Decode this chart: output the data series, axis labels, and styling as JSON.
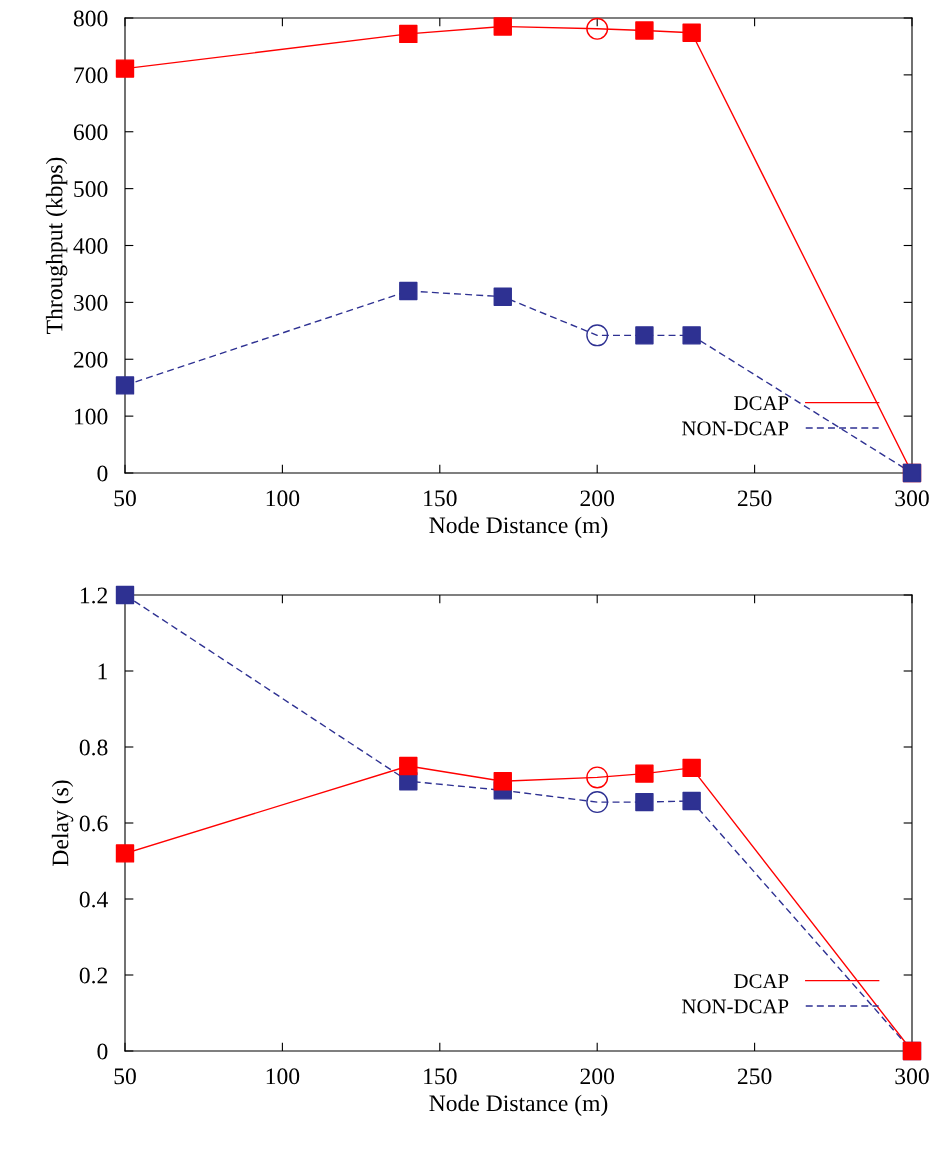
{
  "chart_data": [
    {
      "type": "line",
      "xlabel": "Node Distance (m)",
      "ylabel": "Throughput (kbps)",
      "xlim": [
        50,
        300
      ],
      "xticks": [
        50,
        100,
        150,
        200,
        250,
        300
      ],
      "ylim": [
        0,
        800
      ],
      "yticks": [
        0,
        100,
        200,
        300,
        400,
        500,
        600,
        700,
        800
      ],
      "grid": false,
      "legend": "bottom right",
      "x": [
        50,
        140,
        170,
        200,
        215,
        230,
        300
      ],
      "series": [
        {
          "name": "DCAP",
          "color": "#ff0000",
          "line_style": "solid",
          "marker": "none",
          "values": [
            711,
            772,
            785,
            781,
            778,
            774,
            0
          ]
        },
        {
          "name": "NON-DCAP",
          "color": "#2e3192",
          "line_style": "dashed",
          "marker": "none",
          "values": [
            154,
            320,
            310,
            242,
            242,
            242,
            0
          ]
        },
        {
          "type": "scatter",
          "color": "#ff0000",
          "marker": "square",
          "x": [
            50,
            140,
            170,
            215,
            230,
            300
          ],
          "values": [
            711,
            772,
            785,
            778,
            774,
            0
          ]
        },
        {
          "type": "scatter",
          "color": "#ff0000",
          "marker": "circle",
          "x": [
            200
          ],
          "values": [
            781
          ]
        },
        {
          "type": "scatter",
          "color": "#2e3192",
          "marker": "square",
          "x": [
            50,
            140,
            170,
            215,
            230,
            300
          ],
          "values": [
            154,
            320,
            310,
            242,
            242,
            0
          ]
        },
        {
          "type": "scatter",
          "color": "#2e3192",
          "marker": "circle",
          "x": [
            200
          ],
          "values": [
            242
          ]
        }
      ]
    },
    {
      "type": "line",
      "xlabel": "Node Distance (m)",
      "ylabel": "Delay (s)",
      "xlim": [
        50,
        300
      ],
      "xticks": [
        50,
        100,
        150,
        200,
        250,
        300
      ],
      "ylim": [
        0,
        1.2
      ],
      "yticks": [
        0,
        0.2,
        0.4,
        0.6,
        0.8,
        1,
        1.2
      ],
      "grid": false,
      "legend": "bottom right",
      "x": [
        50,
        140,
        170,
        200,
        215,
        230,
        300
      ],
      "series": [
        {
          "name": "DCAP",
          "color": "#ff0000",
          "line_style": "solid",
          "marker": "none",
          "values": [
            0.52,
            0.75,
            0.71,
            0.72,
            0.73,
            0.745,
            0
          ]
        },
        {
          "name": "NON-DCAP",
          "color": "#2e3192",
          "line_style": "dashed",
          "marker": "none",
          "values": [
            1.2,
            0.71,
            0.686,
            0.655,
            0.655,
            0.658,
            0
          ]
        },
        {
          "type": "scatter",
          "color": "#2e3192",
          "marker": "square",
          "x": [
            50,
            140,
            170,
            215,
            230,
            300
          ],
          "values": [
            1.2,
            0.71,
            0.686,
            0.655,
            0.658,
            0
          ]
        },
        {
          "type": "scatter",
          "color": "#2e3192",
          "marker": "circle",
          "x": [
            200
          ],
          "values": [
            0.655
          ]
        },
        {
          "type": "scatter",
          "color": "#ff0000",
          "marker": "square",
          "x": [
            50,
            140,
            170,
            215,
            230,
            300
          ],
          "values": [
            0.52,
            0.75,
            0.71,
            0.73,
            0.745,
            0
          ]
        },
        {
          "type": "scatter",
          "color": "#ff0000",
          "marker": "circle",
          "x": [
            200
          ],
          "values": [
            0.72
          ]
        }
      ]
    }
  ]
}
